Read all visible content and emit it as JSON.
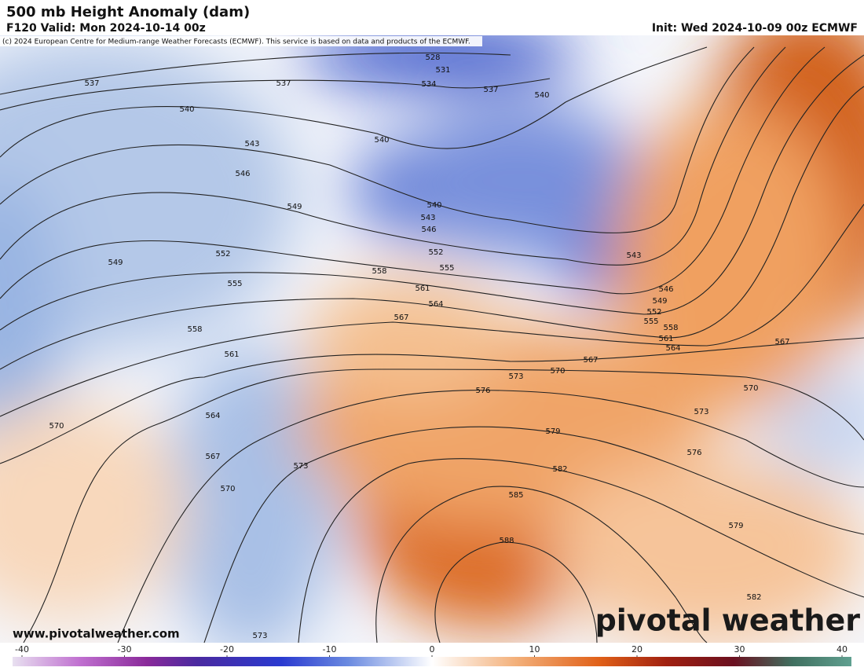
{
  "header": {
    "title": "500 mb Height Anomaly (dam)",
    "valid": "F120 Valid: Mon 2024-10-14 00z",
    "init": "Init: Wed 2024-10-09 00z ECMWF",
    "credit": "(c) 2024 European Centre for Medium-range Weather Forecasts (ECMWF). This service is based on data and products of the ECMWF."
  },
  "map": {
    "contour_labels": [
      528,
      531,
      534,
      537,
      537,
      537,
      540,
      540,
      540,
      543,
      546,
      549,
      540,
      543,
      546,
      552,
      549,
      552,
      555,
      555,
      558,
      543,
      546,
      549,
      552,
      555,
      558,
      561,
      564,
      561,
      564,
      567,
      567,
      558,
      561,
      567,
      570,
      573,
      576,
      570,
      573,
      564,
      570,
      579,
      576,
      567,
      573,
      570,
      582,
      585,
      579,
      588,
      582,
      573
    ]
  },
  "colorbar": {
    "ticks": [
      -40,
      -30,
      -20,
      -10,
      0,
      10,
      20,
      30,
      40
    ]
  },
  "footer": {
    "url": "www.pivotalweather.com",
    "brand": "pivotal weather"
  }
}
